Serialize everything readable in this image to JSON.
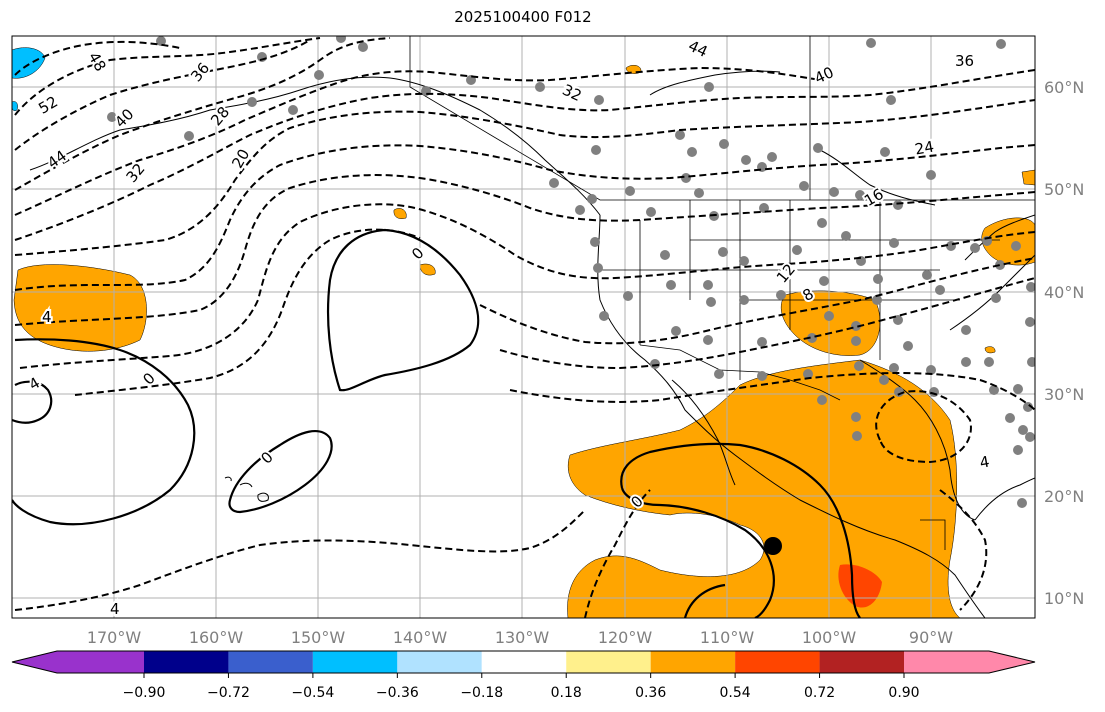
{
  "title": "2025100400 F012",
  "lon_labels": [
    "170°W",
    "160°W",
    "150°W",
    "140°W",
    "130°W",
    "120°W",
    "110°W",
    "100°W",
    "90°W"
  ],
  "lat_labels": [
    "60°N",
    "50°N",
    "40°N",
    "30°N",
    "20°N",
    "10°N"
  ],
  "colorbar": {
    "ticks": [
      "−0.90",
      "−0.72",
      "−0.54",
      "−0.36",
      "−0.18",
      "0.18",
      "0.36",
      "0.54",
      "0.72",
      "0.90"
    ],
    "colors": [
      "#9932cc",
      "#00008b",
      "#3a5fcd",
      "#00bfff",
      "#b0e2ff",
      "#ffffff",
      "#fff08c",
      "#ffa500",
      "#ff4500",
      "#b22222",
      "#ff88aa"
    ]
  },
  "fill_colors": {
    "orange": "#ffa500",
    "red": "#ff4500",
    "blue": "#00bfff"
  },
  "contour_labels": [
    {
      "text": "48"
    },
    {
      "text": "52"
    },
    {
      "text": "40"
    },
    {
      "text": "44"
    },
    {
      "text": "36"
    },
    {
      "text": "28"
    },
    {
      "text": "32"
    },
    {
      "text": "20"
    },
    {
      "text": "44"
    },
    {
      "text": "32"
    },
    {
      "text": "40"
    },
    {
      "text": "36"
    },
    {
      "text": "24"
    },
    {
      "text": "16"
    },
    {
      "text": "12"
    },
    {
      "text": "8"
    },
    {
      "text": "0"
    },
    {
      "text": "0"
    },
    {
      "text": "0"
    },
    {
      "text": "0"
    },
    {
      "text": "4"
    },
    {
      "text": "4"
    },
    {
      "text": "4"
    },
    {
      "text": "4"
    }
  ]
}
